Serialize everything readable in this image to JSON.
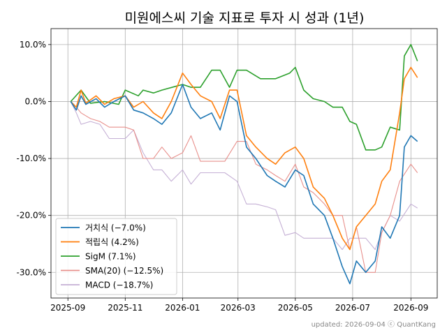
{
  "chart_data": {
    "type": "line",
    "title": "미원에스씨 기술 지표로 투자 시 성과 (1년)",
    "xlabel": "",
    "ylabel": "",
    "x_ticks": [
      "2025-09",
      "2025-11",
      "2026-01",
      "2026-03",
      "2026-05",
      "2026-07",
      "2026-09"
    ],
    "y_ticks": [
      "10.0%",
      "0.0%",
      "-10.0%",
      "-20.0%",
      "-30.0%"
    ],
    "y_tick_values": [
      10,
      0,
      -10,
      -20,
      -30
    ],
    "ylim": [
      -34.5,
      12.8
    ],
    "xlim": [
      "2025-08-14",
      "2026-09-29"
    ],
    "grid": true,
    "legend_position": "lower-left",
    "footer": "updated: 2026-09-04 ⓒ QuantKang",
    "series": [
      {
        "name": "거치식 (−7.0%)",
        "color": "#1f77b4",
        "points": [
          [
            "2025-09-04",
            0
          ],
          [
            "2025-09-10",
            -1.5
          ],
          [
            "2025-09-15",
            1
          ],
          [
            "2025-09-20",
            -0.5
          ],
          [
            "2025-10-01",
            0.5
          ],
          [
            "2025-10-10",
            -1
          ],
          [
            "2025-10-20",
            0
          ],
          [
            "2025-11-01",
            1
          ],
          [
            "2025-11-10",
            -1.5
          ],
          [
            "2025-11-20",
            -2
          ],
          [
            "2025-12-01",
            -3
          ],
          [
            "2025-12-10",
            -4
          ],
          [
            "2025-12-20",
            -2
          ],
          [
            "2026-01-01",
            3
          ],
          [
            "2026-01-10",
            -1
          ],
          [
            "2026-01-20",
            -3
          ],
          [
            "2026-02-01",
            -2
          ],
          [
            "2026-02-10",
            -5
          ],
          [
            "2026-02-20",
            1
          ],
          [
            "2026-02-28",
            0
          ],
          [
            "2026-03-10",
            -8
          ],
          [
            "2026-03-20",
            -10
          ],
          [
            "2026-04-01",
            -13
          ],
          [
            "2026-04-10",
            -14
          ],
          [
            "2026-04-20",
            -15
          ],
          [
            "2026-05-01",
            -12
          ],
          [
            "2026-05-10",
            -13
          ],
          [
            "2026-05-20",
            -18
          ],
          [
            "2026-06-01",
            -20
          ],
          [
            "2026-06-10",
            -24
          ],
          [
            "2026-06-20",
            -29
          ],
          [
            "2026-06-28",
            -32
          ],
          [
            "2026-07-05",
            -28
          ],
          [
            "2026-07-15",
            -30
          ],
          [
            "2026-07-25",
            -28
          ],
          [
            "2026-08-01",
            -22
          ],
          [
            "2026-08-10",
            -24
          ],
          [
            "2026-08-20",
            -20
          ],
          [
            "2026-08-25",
            -8
          ],
          [
            "2026-09-01",
            -6
          ],
          [
            "2026-09-08",
            -7
          ]
        ]
      },
      {
        "name": "적립식 (4.2%)",
        "color": "#ff7f0e",
        "points": [
          [
            "2025-09-04",
            0
          ],
          [
            "2025-09-10",
            -1
          ],
          [
            "2025-09-15",
            2
          ],
          [
            "2025-09-20",
            -0.3
          ],
          [
            "2025-10-01",
            1
          ],
          [
            "2025-10-10",
            -0.5
          ],
          [
            "2025-10-20",
            0.5
          ],
          [
            "2025-11-01",
            1
          ],
          [
            "2025-11-10",
            -1
          ],
          [
            "2025-11-20",
            0
          ],
          [
            "2025-12-01",
            -2
          ],
          [
            "2025-12-10",
            -3
          ],
          [
            "2025-12-20",
            0
          ],
          [
            "2026-01-01",
            5
          ],
          [
            "2026-01-10",
            3
          ],
          [
            "2026-01-20",
            1
          ],
          [
            "2026-02-01",
            0
          ],
          [
            "2026-02-10",
            -3
          ],
          [
            "2026-02-20",
            2
          ],
          [
            "2026-02-28",
            2
          ],
          [
            "2026-03-10",
            -6
          ],
          [
            "2026-03-20",
            -8
          ],
          [
            "2026-04-01",
            -10
          ],
          [
            "2026-04-10",
            -11
          ],
          [
            "2026-04-20",
            -9
          ],
          [
            "2026-05-01",
            -8
          ],
          [
            "2026-05-10",
            -10
          ],
          [
            "2026-05-20",
            -15
          ],
          [
            "2026-06-01",
            -17
          ],
          [
            "2026-06-10",
            -20
          ],
          [
            "2026-06-20",
            -24
          ],
          [
            "2026-06-28",
            -26
          ],
          [
            "2026-07-05",
            -22
          ],
          [
            "2026-07-15",
            -20
          ],
          [
            "2026-07-25",
            -18
          ],
          [
            "2026-08-01",
            -14
          ],
          [
            "2026-08-10",
            -12
          ],
          [
            "2026-08-20",
            -2
          ],
          [
            "2026-08-25",
            4
          ],
          [
            "2026-09-01",
            6
          ],
          [
            "2026-09-08",
            4.2
          ]
        ]
      },
      {
        "name": "SigM (7.1%)",
        "color": "#2ca02c",
        "points": [
          [
            "2025-09-04",
            0
          ],
          [
            "2025-09-15",
            2
          ],
          [
            "2025-09-25",
            -0.3
          ],
          [
            "2025-10-10",
            0
          ],
          [
            "2025-10-25",
            -0.5
          ],
          [
            "2025-11-01",
            2
          ],
          [
            "2025-11-15",
            1
          ],
          [
            "2025-11-20",
            2
          ],
          [
            "2025-12-01",
            1.5
          ],
          [
            "2025-12-10",
            2
          ],
          [
            "2026-01-01",
            3
          ],
          [
            "2026-01-10",
            2.5
          ],
          [
            "2026-01-20",
            2.5
          ],
          [
            "2026-02-01",
            5.5
          ],
          [
            "2026-02-10",
            5.5
          ],
          [
            "2026-02-20",
            2.5
          ],
          [
            "2026-02-28",
            5.5
          ],
          [
            "2026-03-10",
            5.5
          ],
          [
            "2026-03-25",
            4
          ],
          [
            "2026-04-10",
            4
          ],
          [
            "2026-04-25",
            5
          ],
          [
            "2026-05-01",
            6
          ],
          [
            "2026-05-10",
            2
          ],
          [
            "2026-05-20",
            0.5
          ],
          [
            "2026-06-01",
            0
          ],
          [
            "2026-06-10",
            -1
          ],
          [
            "2026-06-20",
            -1
          ],
          [
            "2026-06-28",
            -3.5
          ],
          [
            "2026-07-05",
            -4
          ],
          [
            "2026-07-15",
            -8.5
          ],
          [
            "2026-07-25",
            -8.5
          ],
          [
            "2026-08-01",
            -8
          ],
          [
            "2026-08-10",
            -4.5
          ],
          [
            "2026-08-20",
            -5
          ],
          [
            "2026-08-25",
            8
          ],
          [
            "2026-09-01",
            10
          ],
          [
            "2026-09-08",
            7.1
          ]
        ]
      },
      {
        "name": "SMA(20) (−12.5%)",
        "color": "#e8908c",
        "points": [
          [
            "2025-09-04",
            0
          ],
          [
            "2025-09-10",
            -1
          ],
          [
            "2025-09-15",
            -2
          ],
          [
            "2025-09-25",
            -3
          ],
          [
            "2025-10-05",
            -3.5
          ],
          [
            "2025-10-15",
            -4.5
          ],
          [
            "2025-11-01",
            -4.5
          ],
          [
            "2025-11-10",
            -5
          ],
          [
            "2025-11-20",
            -10
          ],
          [
            "2025-12-01",
            -10
          ],
          [
            "2025-12-10",
            -8
          ],
          [
            "2025-12-20",
            -10
          ],
          [
            "2026-01-01",
            -9
          ],
          [
            "2026-01-10",
            -6
          ],
          [
            "2026-01-20",
            -10.5
          ],
          [
            "2026-02-01",
            -10.5
          ],
          [
            "2026-02-15",
            -10.5
          ],
          [
            "2026-02-28",
            -7
          ],
          [
            "2026-03-10",
            -7
          ],
          [
            "2026-03-20",
            -11
          ],
          [
            "2026-04-01",
            -12
          ],
          [
            "2026-04-10",
            -13
          ],
          [
            "2026-04-20",
            -14
          ],
          [
            "2026-05-01",
            -11
          ],
          [
            "2026-05-10",
            -15
          ],
          [
            "2026-05-20",
            -16
          ],
          [
            "2026-06-01",
            -18
          ],
          [
            "2026-06-10",
            -20
          ],
          [
            "2026-06-20",
            -20
          ],
          [
            "2026-06-28",
            -26
          ],
          [
            "2026-07-05",
            -22
          ],
          [
            "2026-07-15",
            -30
          ],
          [
            "2026-07-25",
            -30
          ],
          [
            "2026-08-01",
            -23
          ],
          [
            "2026-08-10",
            -20
          ],
          [
            "2026-08-20",
            -14
          ],
          [
            "2026-09-01",
            -11
          ],
          [
            "2026-09-08",
            -12.5
          ]
        ]
      },
      {
        "name": "MACD (−18.7%)",
        "color": "#c5b0d5",
        "points": [
          [
            "2025-09-04",
            0
          ],
          [
            "2025-09-10",
            -2
          ],
          [
            "2025-09-15",
            -4
          ],
          [
            "2025-09-25",
            -3.5
          ],
          [
            "2025-10-05",
            -4
          ],
          [
            "2025-10-15",
            -6.5
          ],
          [
            "2025-11-01",
            -6.5
          ],
          [
            "2025-11-10",
            -5
          ],
          [
            "2025-11-20",
            -9
          ],
          [
            "2025-12-01",
            -12
          ],
          [
            "2025-12-10",
            -12
          ],
          [
            "2025-12-20",
            -14
          ],
          [
            "2026-01-01",
            -12
          ],
          [
            "2026-01-10",
            -14.5
          ],
          [
            "2026-01-20",
            -12.5
          ],
          [
            "2026-02-01",
            -12.5
          ],
          [
            "2026-02-15",
            -12.5
          ],
          [
            "2026-02-28",
            -14
          ],
          [
            "2026-03-10",
            -18
          ],
          [
            "2026-03-20",
            -18
          ],
          [
            "2026-04-01",
            -18.5
          ],
          [
            "2026-04-10",
            -19
          ],
          [
            "2026-04-20",
            -23.5
          ],
          [
            "2026-05-01",
            -23
          ],
          [
            "2026-05-10",
            -24
          ],
          [
            "2026-05-20",
            -24
          ],
          [
            "2026-06-01",
            -24
          ],
          [
            "2026-06-10",
            -24
          ],
          [
            "2026-06-20",
            -26
          ],
          [
            "2026-06-28",
            -24
          ],
          [
            "2026-07-05",
            -24
          ],
          [
            "2026-07-15",
            -24
          ],
          [
            "2026-07-25",
            -26
          ],
          [
            "2026-08-01",
            -23
          ],
          [
            "2026-08-10",
            -20
          ],
          [
            "2026-08-20",
            -21
          ],
          [
            "2026-09-01",
            -18
          ],
          [
            "2026-09-08",
            -18.7
          ]
        ]
      }
    ]
  }
}
